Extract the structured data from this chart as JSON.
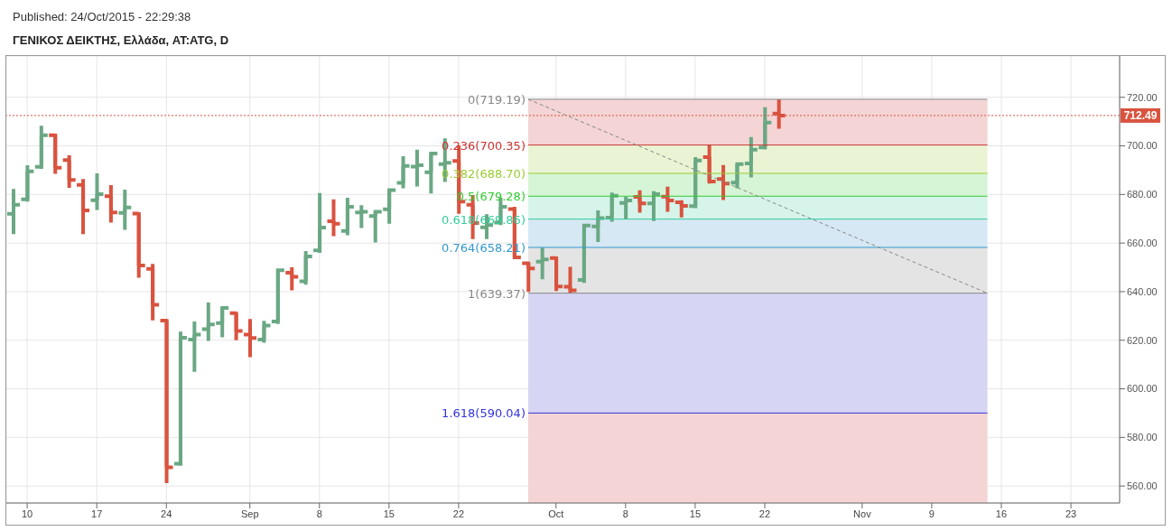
{
  "chart_data": {
    "type": "candlestick",
    "title": "ΓΕΝΙΚΟΣ ΔΕΙΚΤΗΣ, Ελλάδα, AT:ATG, D",
    "annotations": [
      "Published: 24/Oct/2015 - 22:29:38"
    ],
    "categories": [
      null,
      "10",
      null,
      null,
      null,
      null,
      "17",
      null,
      null,
      null,
      null,
      "24",
      null,
      null,
      null,
      null,
      null,
      "Sep",
      null,
      null,
      null,
      null,
      "8",
      null,
      null,
      null,
      null,
      "15",
      null,
      null,
      null,
      null,
      "22",
      null,
      null,
      null,
      null,
      null,
      null,
      "Oct",
      null,
      null,
      null,
      null,
      "8",
      null,
      null,
      null,
      null,
      "15",
      null,
      null,
      null,
      null,
      "22",
      null,
      null,
      null,
      null,
      null,
      null,
      "Nov",
      null,
      null,
      null,
      null,
      "9",
      null,
      null,
      null,
      null,
      "16",
      null,
      null,
      null,
      null,
      "23",
      null,
      null,
      null
    ],
    "ohlc": [
      [
        672,
        682.3,
        663.7,
        675.8
      ],
      [
        678.0,
        692.0,
        677.1,
        689.5
      ],
      [
        691.4,
        708.3,
        690.5,
        704.4
      ],
      [
        704.4,
        705.0,
        688.5,
        691.0
      ],
      [
        694.2,
        696.1,
        682.7,
        686.0
      ],
      [
        683.9,
        686.4,
        663.7,
        673.4
      ],
      [
        677.6,
        688.7,
        673.6,
        680.1
      ],
      [
        679.3,
        683.8,
        668.4,
        672.6
      ],
      [
        672.4,
        682.0,
        665.4,
        674.6
      ],
      [
        672.1,
        672.7,
        645.7,
        650.8
      ],
      [
        649.4,
        651.4,
        628.2,
        634.6
      ],
      [
        628.1,
        628.7,
        561.2,
        567.7
      ],
      [
        569.2,
        623.5,
        568.3,
        621.0
      ],
      [
        620.3,
        627.7,
        607.0,
        622.3
      ],
      [
        624.6,
        635.5,
        619.7,
        626.5
      ],
      [
        627.1,
        634.0,
        621.2,
        633.3
      ],
      [
        631.2,
        631.7,
        620.0,
        623.8
      ],
      [
        622.3,
        628.7,
        613.0,
        620.9
      ],
      [
        620.3,
        628.0,
        619.0,
        626.0
      ],
      [
        627.7,
        649.1,
        626.7,
        648.8
      ],
      [
        647.8,
        650.0,
        640.5,
        646.1
      ],
      [
        644.3,
        656.7,
        642.9,
        654.5
      ],
      [
        657.0,
        680.6,
        656.0,
        666.4
      ],
      [
        669,
        678.0,
        662.8,
        668
      ],
      [
        665.0,
        678.6,
        663.2,
        674.9
      ],
      [
        672.6,
        675.6,
        666.2,
        672.9
      ],
      [
        671.1,
        673.6,
        660.2,
        672.9
      ],
      [
        673.9,
        682.3,
        668.0,
        681.8
      ],
      [
        684.8,
        695.7,
        682.5,
        691.7
      ],
      [
        691.5,
        698.4,
        683.3,
        692.0
      ],
      [
        689.1,
        697.4,
        680.4,
        696.9
      ],
      [
        692.5,
        703.1,
        685.1,
        693.0
      ],
      [
        693.8,
        700.2,
        672.0,
        677.1
      ],
      [
        675.8,
        679.8,
        661.6,
        668.2
      ],
      [
        666.5,
        671.9,
        661.6,
        667.4
      ],
      [
        668.4,
        678.6,
        667.4,
        674.9
      ],
      [
        674.0,
        674.9,
        653.5,
        654.1
      ],
      [
        651.7,
        652.3,
        639.9,
        649.6
      ],
      [
        652.3,
        658.1,
        645.1,
        653.3
      ],
      [
        653.8,
        654.5,
        640.3,
        642.1
      ],
      [
        642.0,
        650.2,
        639.37,
        640.5
      ],
      [
        644.8,
        667.4,
        643.6,
        667.2
      ],
      [
        666.8,
        673.4,
        660.4,
        670.3
      ],
      [
        670.5,
        680.8,
        668.8,
        679.5
      ],
      [
        676.5,
        679.0,
        669.7,
        677.5
      ],
      [
        679.0,
        681.7,
        672.5,
        676.3
      ],
      [
        676.3,
        681.3,
        669.1,
        680.1
      ],
      [
        679.1,
        683.2,
        672.9,
        677.5
      ],
      [
        676.8,
        677.6,
        670.6,
        675.3
      ],
      [
        675.2,
        695.4,
        674.4,
        694.0
      ],
      [
        695.4,
        700.3,
        684.5,
        685.3
      ],
      [
        686.4,
        692.1,
        677.7,
        684.5
      ],
      [
        684.9,
        693.2,
        682.5,
        692.5
      ],
      [
        692.8,
        703.6,
        687.0,
        698.4
      ],
      [
        699.4,
        715.9,
        698.5,
        709.6
      ],
      [
        713.3,
        719.19,
        707.1,
        712.49
      ],
      null,
      null,
      null,
      null,
      null,
      null,
      null,
      null,
      null,
      null,
      null,
      null,
      null,
      null,
      null,
      null,
      null,
      null,
      null,
      null,
      null,
      null,
      null,
      null
    ],
    "colors": [
      "#6aa884",
      "#6aa884",
      "#6aa884",
      "#d9533f",
      "#d9533f",
      "#d9533f",
      "#6aa884",
      "#d9533f",
      "#6aa884",
      "#d9533f",
      "#d9533f",
      "#d9533f",
      "#6aa884",
      "#6aa884",
      "#6aa884",
      "#6aa884",
      "#d9533f",
      "#d9533f",
      "#6aa884",
      "#6aa884",
      "#d9533f",
      "#6aa884",
      "#6aa884",
      "#d9533f",
      "#6aa884",
      "#6aa884",
      "#6aa884",
      "#6aa884",
      "#6aa884",
      "#6aa884",
      "#6aa884",
      "#6aa884",
      "#d9533f",
      "#d9533f",
      "#6aa884",
      "#6aa884",
      "#d9533f",
      "#d9533f",
      "#6aa884",
      "#d9533f",
      "#d9533f",
      "#6aa884",
      "#6aa884",
      "#6aa884",
      "#6aa884",
      "#d9533f",
      "#6aa884",
      "#d9533f",
      "#d9533f",
      "#6aa884",
      "#d9533f",
      "#d9533f",
      "#6aa884",
      "#6aa884",
      "#6aa884",
      "#d9533f",
      null,
      null,
      null,
      null,
      null,
      null,
      null,
      null,
      null,
      null,
      null,
      null,
      null,
      null,
      null,
      null,
      null,
      null,
      null,
      null,
      null,
      null,
      null,
      null
    ],
    "series": [
      {
        "type": "line",
        "color": "#888888",
        "line_style": "dashed",
        "values": [
          null,
          null,
          null,
          null,
          null,
          null,
          null,
          null,
          null,
          null,
          null,
          null,
          null,
          null,
          null,
          null,
          null,
          null,
          null,
          null,
          null,
          null,
          null,
          null,
          null,
          null,
          null,
          null,
          null,
          null,
          null,
          null,
          null,
          null,
          null,
          null,
          null,
          719.19,
          null,
          null,
          null,
          null,
          null,
          null,
          null,
          null,
          null,
          null,
          null,
          null,
          null,
          null,
          null,
          null,
          null,
          null,
          null,
          null,
          null,
          null,
          null,
          null,
          null,
          null,
          null,
          null,
          null,
          null,
          null,
          null,
          639.37,
          null,
          null,
          null,
          null,
          null,
          null,
          null,
          null,
          null
        ]
      }
    ],
    "bands": [
      {
        "axis": "y",
        "from": 700.35,
        "to": 719.19,
        "color": "#f4d4d4"
      },
      {
        "axis": "y",
        "from": 688.7,
        "to": 700.35,
        "color": "#eaf4d4"
      },
      {
        "axis": "y",
        "from": 679.28,
        "to": 688.7,
        "color": "#d6f4d6"
      },
      {
        "axis": "y",
        "from": 669.86,
        "to": 679.28,
        "color": "#d6f4ea"
      },
      {
        "axis": "y",
        "from": 658.21,
        "to": 669.86,
        "color": "#d6e8f4"
      },
      {
        "axis": "y",
        "from": 639.37,
        "to": 658.21,
        "color": "#e4e4e4"
      },
      {
        "axis": "y",
        "from": 590.04,
        "to": 639.37,
        "color": "#d6d6f4"
      },
      {
        "axis": "y",
        "from": 553,
        "to": 590.04,
        "color": "#f4d4d4"
      }
    ],
    "ref_lines": [
      {
        "axis": "y",
        "value": 719.19,
        "label": "0(719.19)",
        "color": "#888888",
        "line_style": "solid"
      },
      {
        "axis": "y",
        "value": 700.35,
        "label": "0.236(700.35)",
        "color": "#cc3333",
        "line_style": "solid"
      },
      {
        "axis": "y",
        "value": 688.7,
        "label": "0.382(688.70)",
        "color": "#99cc33",
        "line_style": "solid"
      },
      {
        "axis": "y",
        "value": 679.28,
        "label": "0.5(679.28)",
        "color": "#33cc33",
        "line_style": "solid"
      },
      {
        "axis": "y",
        "value": 669.86,
        "label": "0.618(669.86)",
        "color": "#33cc99",
        "line_style": "solid"
      },
      {
        "axis": "y",
        "value": 658.21,
        "label": "0.764(658.21)",
        "color": "#3399cc",
        "line_style": "solid"
      },
      {
        "axis": "y",
        "value": 639.37,
        "label": "1(639.37)",
        "color": "#888888",
        "line_style": "solid"
      },
      {
        "axis": "y",
        "value": 590.04,
        "label": "1.618(590.04)",
        "color": "#3333dd",
        "line_style": "solid"
      },
      {
        "axis": "y",
        "value": 712.49,
        "label": "712.49",
        "color": "#d9533f",
        "line_style": "dotted"
      }
    ],
    "ylim": [
      553,
      737
    ],
    "yticks": [
      {
        "value": 560,
        "label": "560.00"
      },
      {
        "value": 580,
        "label": "580.00"
      },
      {
        "value": 600,
        "label": "600.00"
      },
      {
        "value": 620,
        "label": "620.00"
      },
      {
        "value": 640,
        "label": "640.00"
      },
      {
        "value": 660,
        "label": "660.00"
      },
      {
        "value": 680,
        "label": "680.00"
      },
      {
        "value": 700,
        "label": "700.00"
      },
      {
        "value": 720,
        "label": "720.00"
      }
    ],
    "grid": true,
    "marker": "none"
  }
}
